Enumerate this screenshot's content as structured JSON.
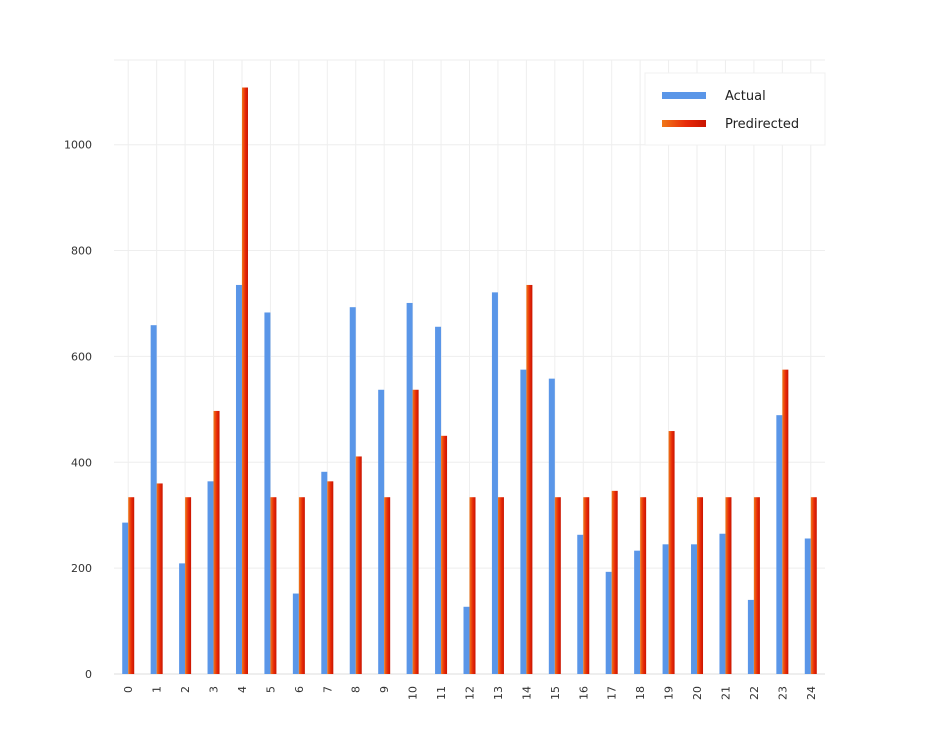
{
  "chart_data": {
    "type": "bar",
    "title": "",
    "xlabel": "",
    "ylabel": "",
    "categories": [
      "0",
      "1",
      "2",
      "3",
      "4",
      "5",
      "6",
      "7",
      "8",
      "9",
      "10",
      "11",
      "12",
      "13",
      "14",
      "15",
      "16",
      "17",
      "18",
      "19",
      "20",
      "21",
      "22",
      "23",
      "24"
    ],
    "ylim": [
      0,
      1160
    ],
    "yticks": [
      0,
      200,
      400,
      600,
      800,
      1000
    ],
    "grid": true,
    "legend_position": "top-right",
    "series": [
      {
        "name": "Actual",
        "color": "#5a96e8",
        "values": [
          286,
          659,
          209,
          364,
          735,
          683,
          152,
          382,
          693,
          537,
          701,
          656,
          127,
          721,
          575,
          558,
          263,
          193,
          233,
          245,
          245,
          265,
          140,
          489,
          256
        ]
      },
      {
        "name": "Predirected",
        "color": "#e8280a",
        "values": [
          334,
          360,
          334,
          497,
          1108,
          334,
          334,
          364,
          411,
          334,
          537,
          450,
          334,
          334,
          735,
          334,
          334,
          346,
          334,
          459,
          334,
          334,
          334,
          575,
          334
        ]
      }
    ]
  }
}
